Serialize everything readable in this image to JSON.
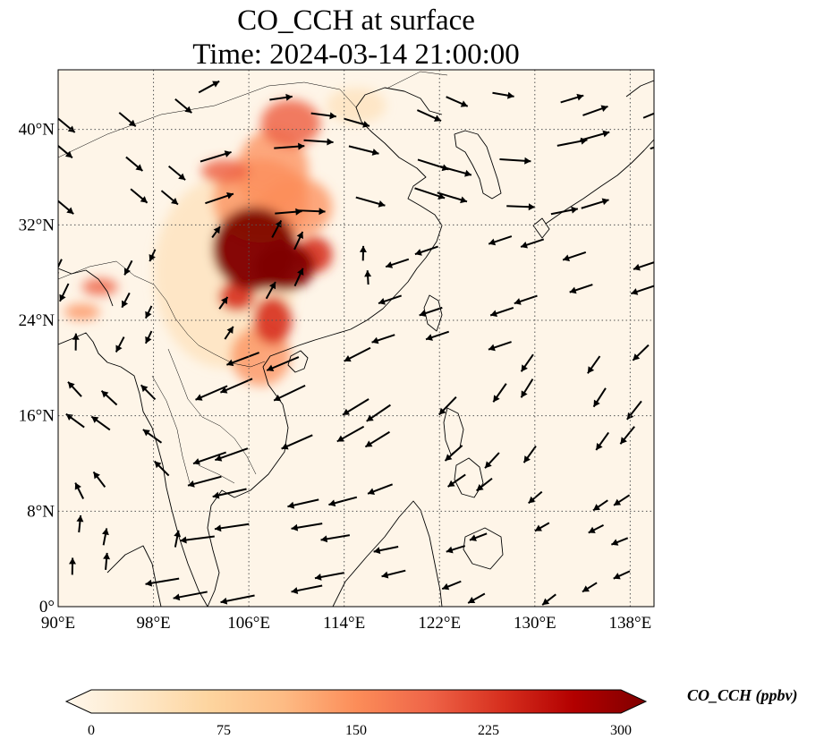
{
  "title": {
    "line1": "CO_CCH at surface",
    "line2": "Time: 2024-03-14 21:00:00"
  },
  "map": {
    "lon_range": [
      90,
      140
    ],
    "lat_range": [
      0,
      45
    ],
    "gridlines": true,
    "lon_ticks": [
      {
        "value": 90,
        "label": "90°E"
      },
      {
        "value": 98,
        "label": "98°E"
      },
      {
        "value": 106,
        "label": "106°E"
      },
      {
        "value": 114,
        "label": "114°E"
      },
      {
        "value": 122,
        "label": "122°E"
      },
      {
        "value": 130,
        "label": "130°E"
      },
      {
        "value": 138,
        "label": "138°E"
      }
    ],
    "lat_ticks": [
      {
        "value": 0,
        "label": "0°"
      },
      {
        "value": 8,
        "label": "8°N"
      },
      {
        "value": 16,
        "label": "16°N"
      },
      {
        "value": 24,
        "label": "24°N"
      },
      {
        "value": 32,
        "label": "32°N"
      },
      {
        "value": 40,
        "label": "40°N"
      }
    ],
    "colormap": "OrRd",
    "plume_regions": [
      {
        "lon": 106.5,
        "lat": 30.0,
        "rx": 3.5,
        "ry": 3.5,
        "level": "very-high"
      },
      {
        "lon": 109.0,
        "lat": 28.5,
        "rx": 2.5,
        "ry": 2.0,
        "level": "very-high"
      },
      {
        "lon": 111.5,
        "lat": 29.5,
        "rx": 1.5,
        "ry": 1.5,
        "level": "high"
      },
      {
        "lon": 105.0,
        "lat": 26.0,
        "rx": 1.5,
        "ry": 1.2,
        "level": "high"
      },
      {
        "lon": 108.0,
        "lat": 24.0,
        "rx": 1.6,
        "ry": 2.0,
        "level": "high"
      },
      {
        "lon": 109.5,
        "lat": 40.5,
        "rx": 2.5,
        "ry": 2.0,
        "level": "medium-high"
      },
      {
        "lon": 108.0,
        "lat": 36.5,
        "rx": 3.0,
        "ry": 3.5,
        "level": "medium"
      },
      {
        "lon": 104.0,
        "lat": 36.5,
        "rx": 2.0,
        "ry": 1.0,
        "level": "medium-high"
      },
      {
        "lon": 107.0,
        "lat": 34.0,
        "rx": 4.0,
        "ry": 3.5,
        "level": "medium"
      },
      {
        "lon": 110.0,
        "lat": 33.5,
        "rx": 3.0,
        "ry": 2.5,
        "level": "medium"
      },
      {
        "lon": 107.0,
        "lat": 21.0,
        "rx": 2.5,
        "ry": 2.5,
        "level": "medium"
      },
      {
        "lon": 93.5,
        "lat": 26.8,
        "rx": 1.5,
        "ry": 0.7,
        "level": "medium-high"
      },
      {
        "lon": 92.0,
        "lat": 24.7,
        "rx": 1.5,
        "ry": 0.7,
        "level": "medium"
      },
      {
        "lon": 115.0,
        "lat": 42.0,
        "rx": 2.5,
        "ry": 1.5,
        "level": "low"
      },
      {
        "lon": 104.0,
        "lat": 28.0,
        "rx": 6.0,
        "ry": 8.0,
        "level": "low"
      }
    ],
    "wind_field": {
      "lon_start": 91,
      "lat_start": 2,
      "step": 4,
      "note": "Synoptic-scale flow: northeasterly trades over South China Sea, westerlies to the north"
    }
  },
  "colorbar": {
    "label": "CO_CCH (ppbv)",
    "min": 0,
    "max": 300,
    "extend": "both",
    "ticks": [
      {
        "value": 0,
        "label": "0"
      },
      {
        "value": 75,
        "label": "75"
      },
      {
        "value": 150,
        "label": "150"
      },
      {
        "value": 225,
        "label": "225"
      },
      {
        "value": 300,
        "label": "300"
      }
    ],
    "colors": [
      "#fff7ec",
      "#fee8c8",
      "#fdd49e",
      "#fdbb84",
      "#fc8d59",
      "#ef6548",
      "#d7301f",
      "#b30000",
      "#7f0000"
    ]
  }
}
